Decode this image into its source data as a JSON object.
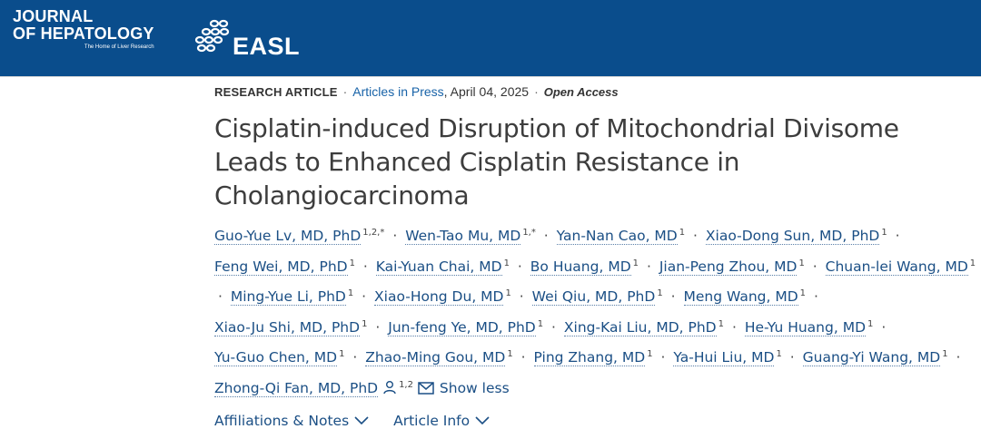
{
  "header": {
    "journal_line1": "JOURNAL",
    "journal_line2": "OF HEPATOLOGY",
    "journal_tagline": "The Home of Liver Research",
    "easl_text": "EASL"
  },
  "meta": {
    "article_type": "RESEARCH ARTICLE",
    "section_link": "Articles in Press",
    "date": ", April 04, 2025",
    "access": "Open Access"
  },
  "title": "Cisplatin-induced Disruption of Mitochondrial Divisome Leads to Enhanced Cisplatin Resistance in Cholangiocarcinoma",
  "authors": [
    {
      "name": "Guo-Yue Lv, MD, PhD",
      "sup": "1,2,*"
    },
    {
      "name": "Wen-Tao Mu, MD",
      "sup": "1,*"
    },
    {
      "name": "Yan-Nan Cao, MD",
      "sup": "1"
    },
    {
      "name": "Xiao-Dong Sun, MD, PhD",
      "sup": "1"
    },
    {
      "name": "Feng Wei, MD, PhD",
      "sup": "1"
    },
    {
      "name": "Kai-Yuan Chai, MD",
      "sup": "1"
    },
    {
      "name": "Bo Huang, MD",
      "sup": "1"
    },
    {
      "name": "Jian-Peng Zhou, MD",
      "sup": "1"
    },
    {
      "name": "Chuan-lei Wang, MD",
      "sup": "1"
    },
    {
      "name": "Ming-Yue Li, PhD",
      "sup": "1"
    },
    {
      "name": "Xiao-Hong Du, MD",
      "sup": "1"
    },
    {
      "name": "Wei Qiu, MD, PhD",
      "sup": "1"
    },
    {
      "name": "Meng Wang, MD",
      "sup": "1"
    },
    {
      "name": "Xiao-Ju Shi, MD, PhD",
      "sup": "1"
    },
    {
      "name": "Jun-feng Ye, MD, PhD",
      "sup": "1"
    },
    {
      "name": "Xing-Kai Liu, MD, PhD",
      "sup": "1"
    },
    {
      "name": "He-Yu Huang, MD",
      "sup": "1"
    },
    {
      "name": "Yu-Guo Chen, MD",
      "sup": "1"
    },
    {
      "name": "Zhao-Ming Gou, MD",
      "sup": "1"
    },
    {
      "name": "Ping Zhang, MD",
      "sup": "1"
    },
    {
      "name": "Ya-Hui Liu, MD",
      "sup": "1"
    },
    {
      "name": "Guang-Yi Wang, MD",
      "sup": "1"
    },
    {
      "name": "Zhong-Qi Fan, MD, PhD",
      "sup": "1,2"
    }
  ],
  "author_separator": "·",
  "show_less": "Show less",
  "links": {
    "affiliations": "Affiliations & Notes",
    "article_info": "Article Info"
  },
  "colors": {
    "header_bg": "#0a4d8c",
    "link": "#1b4f85"
  }
}
